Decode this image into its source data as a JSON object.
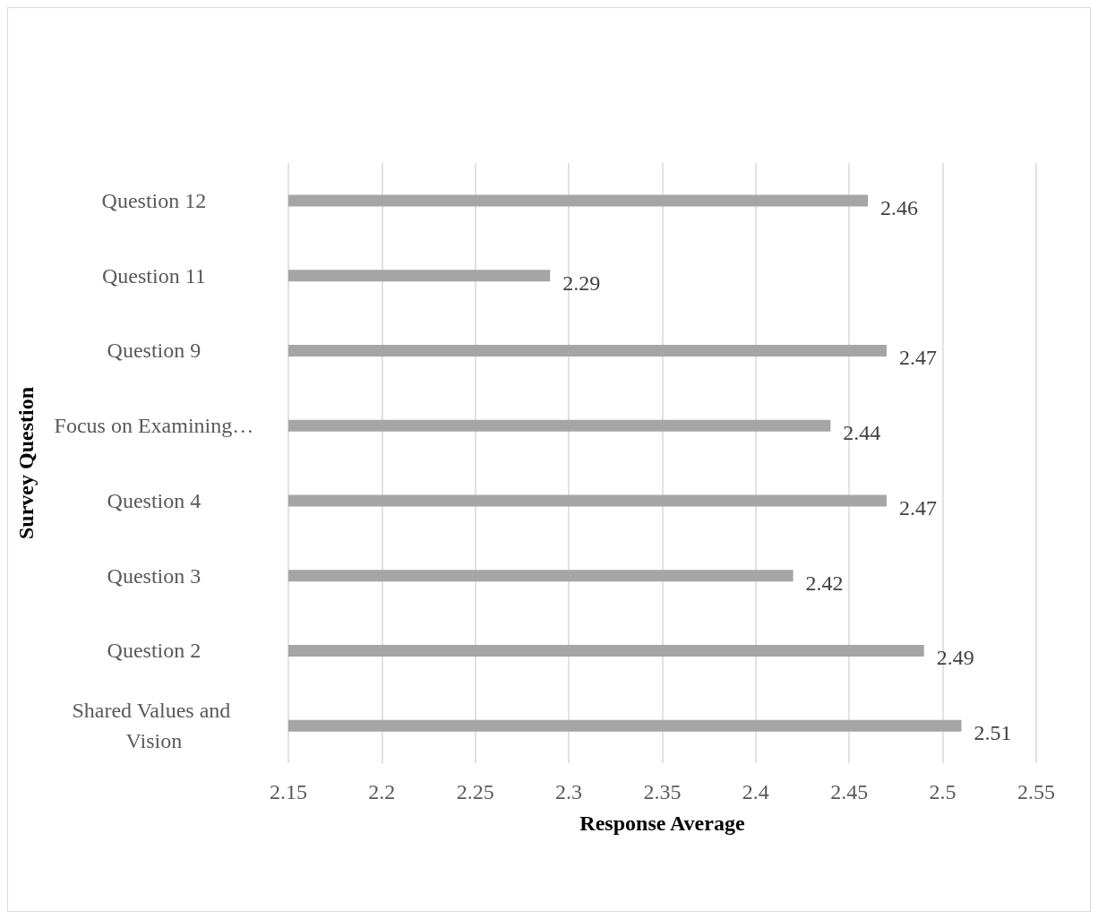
{
  "chart_data": {
    "type": "bar",
    "orientation": "horizontal",
    "xlabel": "Response Average",
    "ylabel": "Survey Question",
    "categories": [
      "Question 12",
      "Question 11",
      "Question 9",
      "Focus on Examining…",
      "Question 4",
      "Question 3",
      "Question 2",
      "Shared Values and Vision"
    ],
    "values": [
      2.46,
      2.29,
      2.47,
      2.44,
      2.47,
      2.42,
      2.49,
      2.51
    ],
    "color": "#a5a5a5",
    "xlim": [
      2.15,
      2.55
    ],
    "xticks": [
      2.15,
      2.2,
      2.25,
      2.3,
      2.35,
      2.4,
      2.45,
      2.5,
      2.55
    ],
    "grid": "x",
    "data_labels": true
  }
}
